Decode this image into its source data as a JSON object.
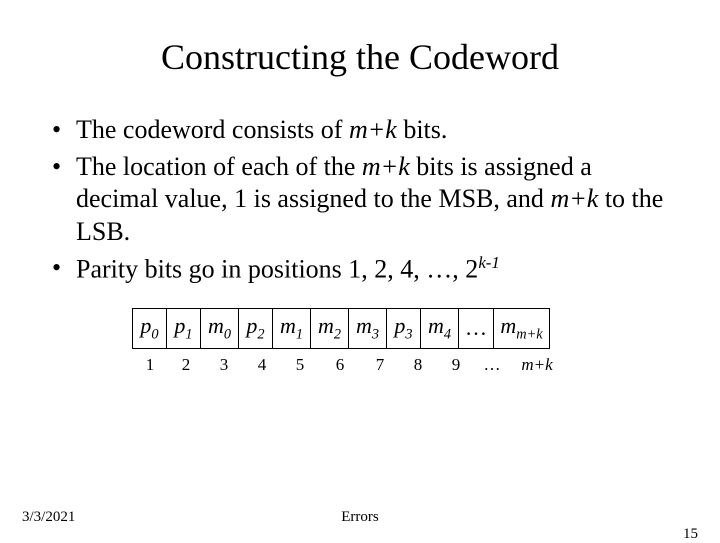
{
  "title": "Constructing the Codeword",
  "bullets": {
    "b1_pre": "The codeword consists of ",
    "b1_ital": "m+k",
    "b1_post": " bits.",
    "b2_pre": "The location of each of the ",
    "b2_ital": "m+k",
    "b2_post": " bits is assigned a decimal value, 1 is assigned to the MSB, and ",
    "b2_ital2": "m+k",
    "b2_post2": " to the LSB.",
    "b3_pre": "Parity bits go in positions 1, 2, 4, …, 2",
    "b3_sup": "k-1"
  },
  "table": {
    "cells": [
      {
        "base": "p",
        "sub": "0"
      },
      {
        "base": "p",
        "sub": "1"
      },
      {
        "base": "m",
        "sub": "0"
      },
      {
        "base": "p",
        "sub": "2"
      },
      {
        "base": "m",
        "sub": "1"
      },
      {
        "base": "m",
        "sub": "2"
      },
      {
        "base": "m",
        "sub": "3"
      },
      {
        "base": "p",
        "sub": "3"
      },
      {
        "base": "m",
        "sub": "4"
      },
      {
        "base": "…",
        "sub": ""
      },
      {
        "base": "m",
        "sub": "m+k"
      }
    ],
    "positions": [
      "1",
      "2",
      "3",
      "4",
      "5",
      "6",
      "7",
      "8",
      "9",
      "…"
    ],
    "lastpos": "m+k",
    "widths": [
      34,
      34,
      38,
      34,
      38,
      38,
      38,
      34,
      38,
      30,
      56
    ]
  },
  "footer": {
    "date": "3/3/2021",
    "center": "Errors",
    "page": "15"
  }
}
